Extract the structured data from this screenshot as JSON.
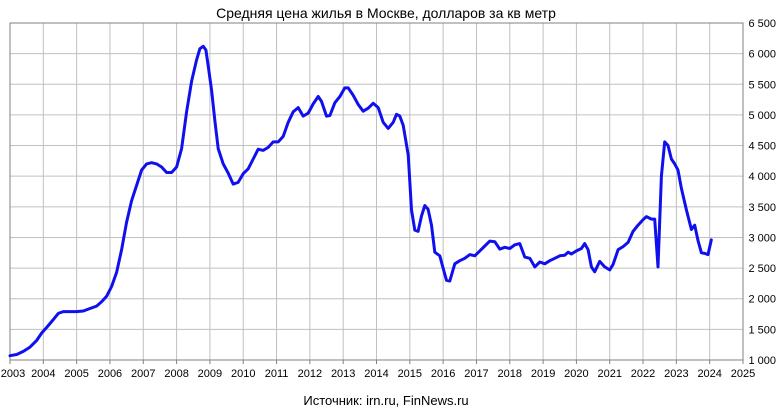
{
  "chart_data": {
    "type": "line",
    "title": "Средняя цена жилья в Москве, долларов за кв метр",
    "source": "Источник: irn.ru, FinNews.ru",
    "xlabel": "",
    "ylabel": "",
    "xlim": [
      2003,
      2025
    ],
    "ylim": [
      1000,
      6500
    ],
    "grid": true,
    "legend": "none",
    "colors": {
      "line": "#1010ee",
      "grid": "#c0c0c0",
      "frame": "#808080"
    },
    "y_ticks": [
      {
        "value": 1000,
        "label": "1 000"
      },
      {
        "value": 1500,
        "label": "1 500"
      },
      {
        "value": 2000,
        "label": "2 000"
      },
      {
        "value": 2500,
        "label": "2 500"
      },
      {
        "value": 3000,
        "label": "3 000"
      },
      {
        "value": 3500,
        "label": "3 500"
      },
      {
        "value": 4000,
        "label": "4 000"
      },
      {
        "value": 4500,
        "label": "4 500"
      },
      {
        "value": 5000,
        "label": "5 000"
      },
      {
        "value": 5500,
        "label": "5 500"
      },
      {
        "value": 6000,
        "label": "6 000"
      },
      {
        "value": 6500,
        "label": "6 500"
      }
    ],
    "x_ticks": [
      {
        "value": 2003,
        "label": "2003"
      },
      {
        "value": 2004,
        "label": "2004"
      },
      {
        "value": 2005,
        "label": "2005"
      },
      {
        "value": 2006,
        "label": "2006"
      },
      {
        "value": 2007,
        "label": "2007"
      },
      {
        "value": 2008,
        "label": "2008"
      },
      {
        "value": 2009,
        "label": "2009"
      },
      {
        "value": 2010,
        "label": "2010"
      },
      {
        "value": 2011,
        "label": "2011"
      },
      {
        "value": 2012,
        "label": "2012"
      },
      {
        "value": 2013,
        "label": "2013"
      },
      {
        "value": 2014,
        "label": "2014"
      },
      {
        "value": 2015,
        "label": "2015"
      },
      {
        "value": 2016,
        "label": "2016"
      },
      {
        "value": 2017,
        "label": "2017"
      },
      {
        "value": 2018,
        "label": "2018"
      },
      {
        "value": 2019,
        "label": "2019"
      },
      {
        "value": 2020,
        "label": "2020"
      },
      {
        "value": 2021,
        "label": "2021"
      },
      {
        "value": 2022,
        "label": "2022"
      },
      {
        "value": 2023,
        "label": "2023"
      },
      {
        "value": 2024,
        "label": "2024"
      },
      {
        "value": 2025,
        "label": "2025"
      }
    ],
    "series": [
      {
        "points": [
          [
            2003.0,
            1070
          ],
          [
            2003.2,
            1090
          ],
          [
            2003.4,
            1140
          ],
          [
            2003.6,
            1210
          ],
          [
            2003.8,
            1320
          ],
          [
            2003.95,
            1440
          ],
          [
            2004.1,
            1530
          ],
          [
            2004.3,
            1660
          ],
          [
            2004.45,
            1760
          ],
          [
            2004.6,
            1790
          ],
          [
            2004.8,
            1790
          ],
          [
            2005.0,
            1790
          ],
          [
            2005.2,
            1800
          ],
          [
            2005.4,
            1840
          ],
          [
            2005.6,
            1880
          ],
          [
            2005.75,
            1950
          ],
          [
            2005.9,
            2040
          ],
          [
            2006.05,
            2200
          ],
          [
            2006.2,
            2430
          ],
          [
            2006.35,
            2800
          ],
          [
            2006.5,
            3250
          ],
          [
            2006.65,
            3600
          ],
          [
            2006.8,
            3850
          ],
          [
            2006.95,
            4100
          ],
          [
            2007.1,
            4200
          ],
          [
            2007.25,
            4220
          ],
          [
            2007.4,
            4200
          ],
          [
            2007.55,
            4150
          ],
          [
            2007.7,
            4060
          ],
          [
            2007.85,
            4060
          ],
          [
            2008.0,
            4150
          ],
          [
            2008.15,
            4450
          ],
          [
            2008.3,
            5050
          ],
          [
            2008.45,
            5550
          ],
          [
            2008.6,
            5900
          ],
          [
            2008.7,
            6080
          ],
          [
            2008.8,
            6120
          ],
          [
            2008.88,
            6060
          ],
          [
            2008.95,
            5800
          ],
          [
            2009.05,
            5400
          ],
          [
            2009.15,
            4900
          ],
          [
            2009.25,
            4450
          ],
          [
            2009.4,
            4200
          ],
          [
            2009.55,
            4050
          ],
          [
            2009.7,
            3870
          ],
          [
            2009.85,
            3900
          ],
          [
            2010.0,
            4040
          ],
          [
            2010.15,
            4120
          ],
          [
            2010.3,
            4280
          ],
          [
            2010.45,
            4440
          ],
          [
            2010.6,
            4420
          ],
          [
            2010.75,
            4470
          ],
          [
            2010.9,
            4560
          ],
          [
            2011.05,
            4560
          ],
          [
            2011.2,
            4650
          ],
          [
            2011.35,
            4880
          ],
          [
            2011.5,
            5050
          ],
          [
            2011.65,
            5120
          ],
          [
            2011.8,
            4980
          ],
          [
            2011.95,
            5030
          ],
          [
            2012.1,
            5180
          ],
          [
            2012.25,
            5300
          ],
          [
            2012.35,
            5220
          ],
          [
            2012.5,
            4980
          ],
          [
            2012.6,
            4990
          ],
          [
            2012.75,
            5200
          ],
          [
            2012.9,
            5300
          ],
          [
            2013.05,
            5440
          ],
          [
            2013.15,
            5440
          ],
          [
            2013.3,
            5320
          ],
          [
            2013.45,
            5170
          ],
          [
            2013.6,
            5060
          ],
          [
            2013.75,
            5110
          ],
          [
            2013.9,
            5190
          ],
          [
            2014.05,
            5120
          ],
          [
            2014.2,
            4880
          ],
          [
            2014.35,
            4780
          ],
          [
            2014.5,
            4880
          ],
          [
            2014.6,
            5010
          ],
          [
            2014.7,
            4980
          ],
          [
            2014.8,
            4830
          ],
          [
            2014.95,
            4350
          ],
          [
            2015.05,
            3450
          ],
          [
            2015.15,
            3120
          ],
          [
            2015.25,
            3100
          ],
          [
            2015.35,
            3350
          ],
          [
            2015.45,
            3520
          ],
          [
            2015.55,
            3460
          ],
          [
            2015.65,
            3200
          ],
          [
            2015.75,
            2760
          ],
          [
            2015.9,
            2700
          ],
          [
            2016.0,
            2500
          ],
          [
            2016.1,
            2300
          ],
          [
            2016.2,
            2290
          ],
          [
            2016.35,
            2570
          ],
          [
            2016.5,
            2620
          ],
          [
            2016.65,
            2660
          ],
          [
            2016.8,
            2720
          ],
          [
            2016.95,
            2700
          ],
          [
            2017.1,
            2780
          ],
          [
            2017.25,
            2860
          ],
          [
            2017.4,
            2940
          ],
          [
            2017.55,
            2930
          ],
          [
            2017.7,
            2810
          ],
          [
            2017.85,
            2840
          ],
          [
            2018.0,
            2820
          ],
          [
            2018.15,
            2880
          ],
          [
            2018.3,
            2900
          ],
          [
            2018.45,
            2680
          ],
          [
            2018.6,
            2660
          ],
          [
            2018.75,
            2520
          ],
          [
            2018.9,
            2600
          ],
          [
            2019.05,
            2570
          ],
          [
            2019.2,
            2620
          ],
          [
            2019.35,
            2660
          ],
          [
            2019.5,
            2700
          ],
          [
            2019.65,
            2710
          ],
          [
            2019.75,
            2760
          ],
          [
            2019.85,
            2730
          ],
          [
            2020.0,
            2780
          ],
          [
            2020.15,
            2820
          ],
          [
            2020.25,
            2900
          ],
          [
            2020.35,
            2800
          ],
          [
            2020.45,
            2520
          ],
          [
            2020.55,
            2440
          ],
          [
            2020.7,
            2610
          ],
          [
            2020.85,
            2520
          ],
          [
            2021.0,
            2470
          ],
          [
            2021.1,
            2560
          ],
          [
            2021.25,
            2800
          ],
          [
            2021.4,
            2850
          ],
          [
            2021.55,
            2920
          ],
          [
            2021.7,
            3100
          ],
          [
            2021.85,
            3200
          ],
          [
            2022.0,
            3290
          ],
          [
            2022.1,
            3340
          ],
          [
            2022.25,
            3300
          ],
          [
            2022.35,
            3300
          ],
          [
            2022.45,
            2520
          ],
          [
            2022.55,
            4000
          ],
          [
            2022.65,
            4560
          ],
          [
            2022.75,
            4500
          ],
          [
            2022.85,
            4280
          ],
          [
            2022.95,
            4200
          ],
          [
            2023.05,
            4100
          ],
          [
            2023.15,
            3800
          ],
          [
            2023.3,
            3450
          ],
          [
            2023.45,
            3130
          ],
          [
            2023.55,
            3200
          ],
          [
            2023.65,
            2950
          ],
          [
            2023.75,
            2750
          ],
          [
            2023.85,
            2740
          ],
          [
            2023.95,
            2720
          ],
          [
            2024.05,
            2960
          ]
        ]
      }
    ]
  }
}
